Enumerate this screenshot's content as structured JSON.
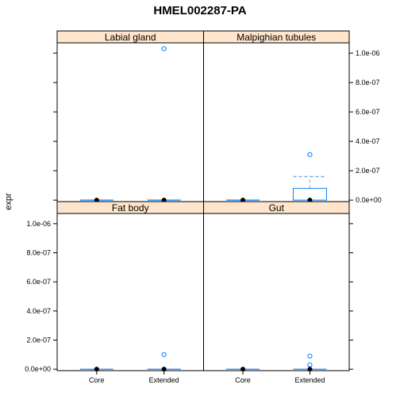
{
  "chart_data": {
    "type": "boxplot",
    "title": "HMEL002287-PA",
    "xlabel": "",
    "ylabel": "expr",
    "categories": [
      "Core",
      "Extended"
    ],
    "ylim": [
      -1e-08,
      1.07e-06
    ],
    "yticks": [
      0,
      2e-07,
      4e-07,
      6e-07,
      8e-07,
      1e-06
    ],
    "ytick_labels": [
      "0.0e+00",
      "2.0e-07",
      "4.0e-07",
      "6.0e-07",
      "8.0e-07",
      "1.0e-06"
    ],
    "colors": {
      "strip": "#ffe5cc",
      "box": "#0080ff",
      "whisker": "#7fa9d8",
      "outlier": "#0080ff",
      "median": "#000000"
    },
    "panels": [
      {
        "name": "Labial gland",
        "groups": [
          {
            "category": "Core",
            "q1": 0,
            "median": 0,
            "q3": 0,
            "whisker_low": 0,
            "whisker_high": 0,
            "outliers": []
          },
          {
            "category": "Extended",
            "q1": 0,
            "median": 0,
            "q3": 0,
            "whisker_low": 0,
            "whisker_high": 0,
            "outliers": [
              1.03e-06
            ]
          }
        ]
      },
      {
        "name": "Malpighian tubules",
        "groups": [
          {
            "category": "Core",
            "q1": 0,
            "median": 0,
            "q3": 0,
            "whisker_low": 0,
            "whisker_high": 0,
            "outliers": []
          },
          {
            "category": "Extended",
            "q1": 0,
            "median": 0,
            "q3": 8e-08,
            "whisker_low": 0,
            "whisker_high": 1.6e-07,
            "outliers": [
              3.1e-07
            ]
          }
        ]
      },
      {
        "name": "Fat body",
        "groups": [
          {
            "category": "Core",
            "q1": 0,
            "median": 0,
            "q3": 0,
            "whisker_low": 0,
            "whisker_high": 0,
            "outliers": []
          },
          {
            "category": "Extended",
            "q1": 0,
            "median": 0,
            "q3": 0,
            "whisker_low": 0,
            "whisker_high": 0,
            "outliers": [
              1e-07
            ]
          }
        ]
      },
      {
        "name": "Gut",
        "groups": [
          {
            "category": "Core",
            "q1": 0,
            "median": 0,
            "q3": 0,
            "whisker_low": 0,
            "whisker_high": 0,
            "outliers": []
          },
          {
            "category": "Extended",
            "q1": 0,
            "median": 0,
            "q3": 0,
            "whisker_low": 0,
            "whisker_high": 0,
            "outliers": [
              9e-08,
              3e-08
            ]
          }
        ]
      }
    ]
  }
}
